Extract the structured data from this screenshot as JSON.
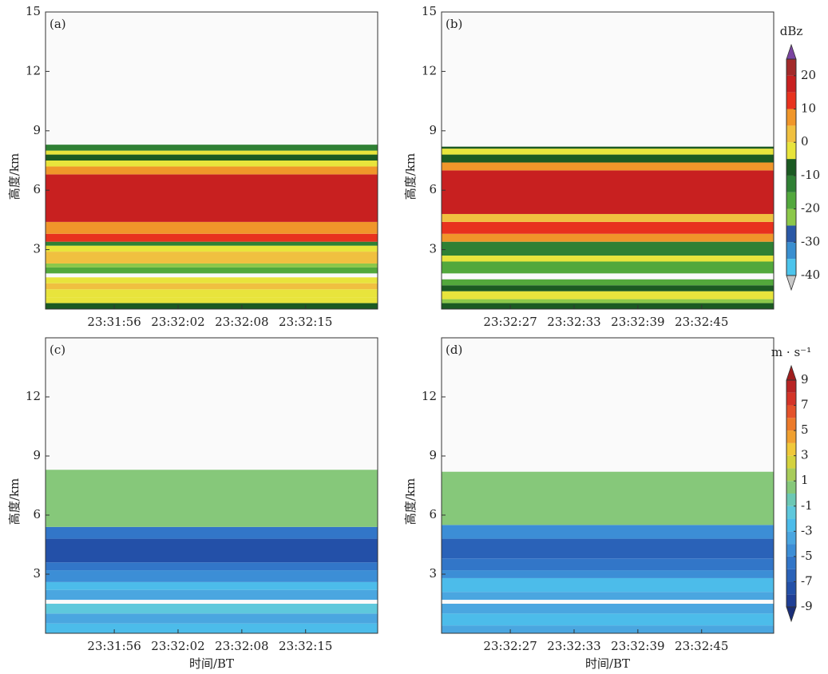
{
  "chart_data": [
    {
      "type": "contour",
      "panel_label": "(a)",
      "ylabel": "高度/km",
      "ylim": [
        0,
        15
      ],
      "yticks": [
        3,
        6,
        9,
        12,
        15
      ],
      "xticks": [
        "23:31:56",
        "23:32:02",
        "23:32:08",
        "23:32:15"
      ],
      "bands": [
        {
          "bottom": 0,
          "top": 0.3,
          "value": -8
        },
        {
          "bottom": 0.3,
          "top": 0.6,
          "value": -3
        },
        {
          "bottom": 0.6,
          "top": 1.0,
          "value": -2
        },
        {
          "bottom": 1.0,
          "top": 1.3,
          "value": 3
        },
        {
          "bottom": 1.3,
          "top": 1.6,
          "value": -3
        },
        {
          "bottom": 1.8,
          "top": 2.1,
          "value": -18
        },
        {
          "bottom": 2.1,
          "top": 2.3,
          "value": -22
        },
        {
          "bottom": 2.3,
          "top": 2.9,
          "value": 2
        },
        {
          "bottom": 2.9,
          "top": 3.2,
          "value": -3
        },
        {
          "bottom": 3.2,
          "top": 3.4,
          "value": -13
        },
        {
          "bottom": 3.4,
          "top": 3.8,
          "value": 12
        },
        {
          "bottom": 3.8,
          "top": 4.4,
          "value": 8
        },
        {
          "bottom": 4.4,
          "top": 6.8,
          "value": 17
        },
        {
          "bottom": 6.8,
          "top": 7.2,
          "value": 7
        },
        {
          "bottom": 7.2,
          "top": 7.5,
          "value": -2
        },
        {
          "bottom": 7.5,
          "top": 7.8,
          "value": -8
        },
        {
          "bottom": 7.8,
          "top": 8.0,
          "value": -2
        },
        {
          "bottom": 8.0,
          "top": 8.3,
          "value": -13
        }
      ]
    },
    {
      "type": "contour",
      "panel_label": "(b)",
      "ylabel": "高度/km",
      "ylim": [
        0,
        15
      ],
      "yticks": [
        3,
        6,
        9,
        12,
        15
      ],
      "xticks": [
        "23:32:27",
        "23:32:33",
        "23:32:39",
        "23:32:45"
      ],
      "bands": [
        {
          "bottom": 0,
          "top": 0.3,
          "value": -8
        },
        {
          "bottom": 0.3,
          "top": 0.5,
          "value": -22
        },
        {
          "bottom": 0.5,
          "top": 0.9,
          "value": -3
        },
        {
          "bottom": 0.9,
          "top": 1.2,
          "value": -8
        },
        {
          "bottom": 1.2,
          "top": 1.5,
          "value": -18
        },
        {
          "bottom": 1.8,
          "top": 2.4,
          "value": -18
        },
        {
          "bottom": 2.4,
          "top": 2.7,
          "value": -3
        },
        {
          "bottom": 2.7,
          "top": 3.4,
          "value": -13
        },
        {
          "bottom": 3.4,
          "top": 3.8,
          "value": 7
        },
        {
          "bottom": 3.8,
          "top": 4.4,
          "value": 12
        },
        {
          "bottom": 4.4,
          "top": 4.8,
          "value": 4
        },
        {
          "bottom": 4.8,
          "top": 7.0,
          "value": 17
        },
        {
          "bottom": 7.0,
          "top": 7.4,
          "value": 7
        },
        {
          "bottom": 7.4,
          "top": 7.8,
          "value": -8
        },
        {
          "bottom": 7.8,
          "top": 8.1,
          "value": -2
        },
        {
          "bottom": 8.1,
          "top": 8.2,
          "value": -8
        }
      ],
      "colorbar": {
        "label": "dBz",
        "levels": [
          -40,
          -35,
          -30,
          -25,
          -20,
          -15,
          -10,
          -5,
          0,
          5,
          10,
          15,
          20,
          25
        ],
        "colors": [
          "#4cc4ec",
          "#3a8fd0",
          "#2a58a6",
          "#8cc84a",
          "#52a83c",
          "#2f8034",
          "#1b5a22",
          "#e8e43c",
          "#f0c040",
          "#f0962a",
          "#e8321e",
          "#c82020",
          "#a32a2a"
        ],
        "under_color": "#c8c8c8",
        "over_color": "#7a44a0",
        "ticks": [
          -40,
          -30,
          -20,
          -10,
          0,
          10,
          20
        ]
      }
    },
    {
      "type": "contour",
      "panel_label": "(c)",
      "ylabel": "高度/km",
      "xlabel": "时间/BT",
      "ylim": [
        0,
        15
      ],
      "yticks": [
        3,
        6,
        9,
        12
      ],
      "xticks": [
        "23:31:56",
        "23:32:02",
        "23:32:08",
        "23:32:15"
      ],
      "bands": [
        {
          "bottom": 0,
          "top": 0.5,
          "value": -2.5
        },
        {
          "bottom": 0.5,
          "top": 1.0,
          "value": -3.5
        },
        {
          "bottom": 1.0,
          "top": 1.5,
          "value": -2
        },
        {
          "bottom": 1.7,
          "top": 2.2,
          "value": -4
        },
        {
          "bottom": 2.2,
          "top": 2.6,
          "value": -2.5
        },
        {
          "bottom": 2.6,
          "top": 3.2,
          "value": -4.5
        },
        {
          "bottom": 3.2,
          "top": 3.6,
          "value": -6
        },
        {
          "bottom": 3.6,
          "top": 4.8,
          "value": -7.5
        },
        {
          "bottom": 4.8,
          "top": 5.4,
          "value": -6
        },
        {
          "bottom": 5.4,
          "top": 8.3,
          "value": 0
        }
      ]
    },
    {
      "type": "contour",
      "panel_label": "(d)",
      "ylabel": "高度/km",
      "xlabel": "时间/BT",
      "ylim": [
        0,
        15
      ],
      "yticks": [
        3,
        6,
        9,
        12
      ],
      "xticks": [
        "23:32:27",
        "23:32:33",
        "23:32:39",
        "23:32:45"
      ],
      "bands": [
        {
          "bottom": 0,
          "top": 0.4,
          "value": -4
        },
        {
          "bottom": 0.4,
          "top": 1.0,
          "value": -2.5
        },
        {
          "bottom": 1.0,
          "top": 1.5,
          "value": -4
        },
        {
          "bottom": 1.7,
          "top": 2.1,
          "value": -4
        },
        {
          "bottom": 2.1,
          "top": 2.8,
          "value": -2.5
        },
        {
          "bottom": 2.8,
          "top": 3.2,
          "value": -4.5
        },
        {
          "bottom": 3.2,
          "top": 3.8,
          "value": -5.5
        },
        {
          "bottom": 3.8,
          "top": 4.8,
          "value": -6.5
        },
        {
          "bottom": 4.8,
          "top": 5.5,
          "value": -4.5
        },
        {
          "bottom": 5.5,
          "top": 8.2,
          "value": 0
        }
      ],
      "colorbar": {
        "label": "m · s⁻¹",
        "levels": [
          -9,
          -8,
          -7,
          -6,
          -5,
          -4,
          -3,
          -2,
          -1,
          0,
          1,
          2,
          3,
          4,
          5,
          6,
          7,
          8,
          9
        ],
        "colors": [
          "#1f3f96",
          "#2350a8",
          "#2a62b8",
          "#3276c8",
          "#3c8ed6",
          "#4aa6e0",
          "#4cbcea",
          "#5ec8dc",
          "#6cc8b4",
          "#86c87a",
          "#a8cc5a",
          "#d4d23e",
          "#f0c83a",
          "#f0a030",
          "#ec7a2a",
          "#e4522a",
          "#d43428",
          "#b82424"
        ],
        "under_color": "#1a2e78",
        "over_color": "#a01e1e",
        "ticks": [
          -9,
          -7,
          -5,
          -3,
          -1,
          1,
          3,
          5,
          7,
          9
        ]
      }
    }
  ]
}
